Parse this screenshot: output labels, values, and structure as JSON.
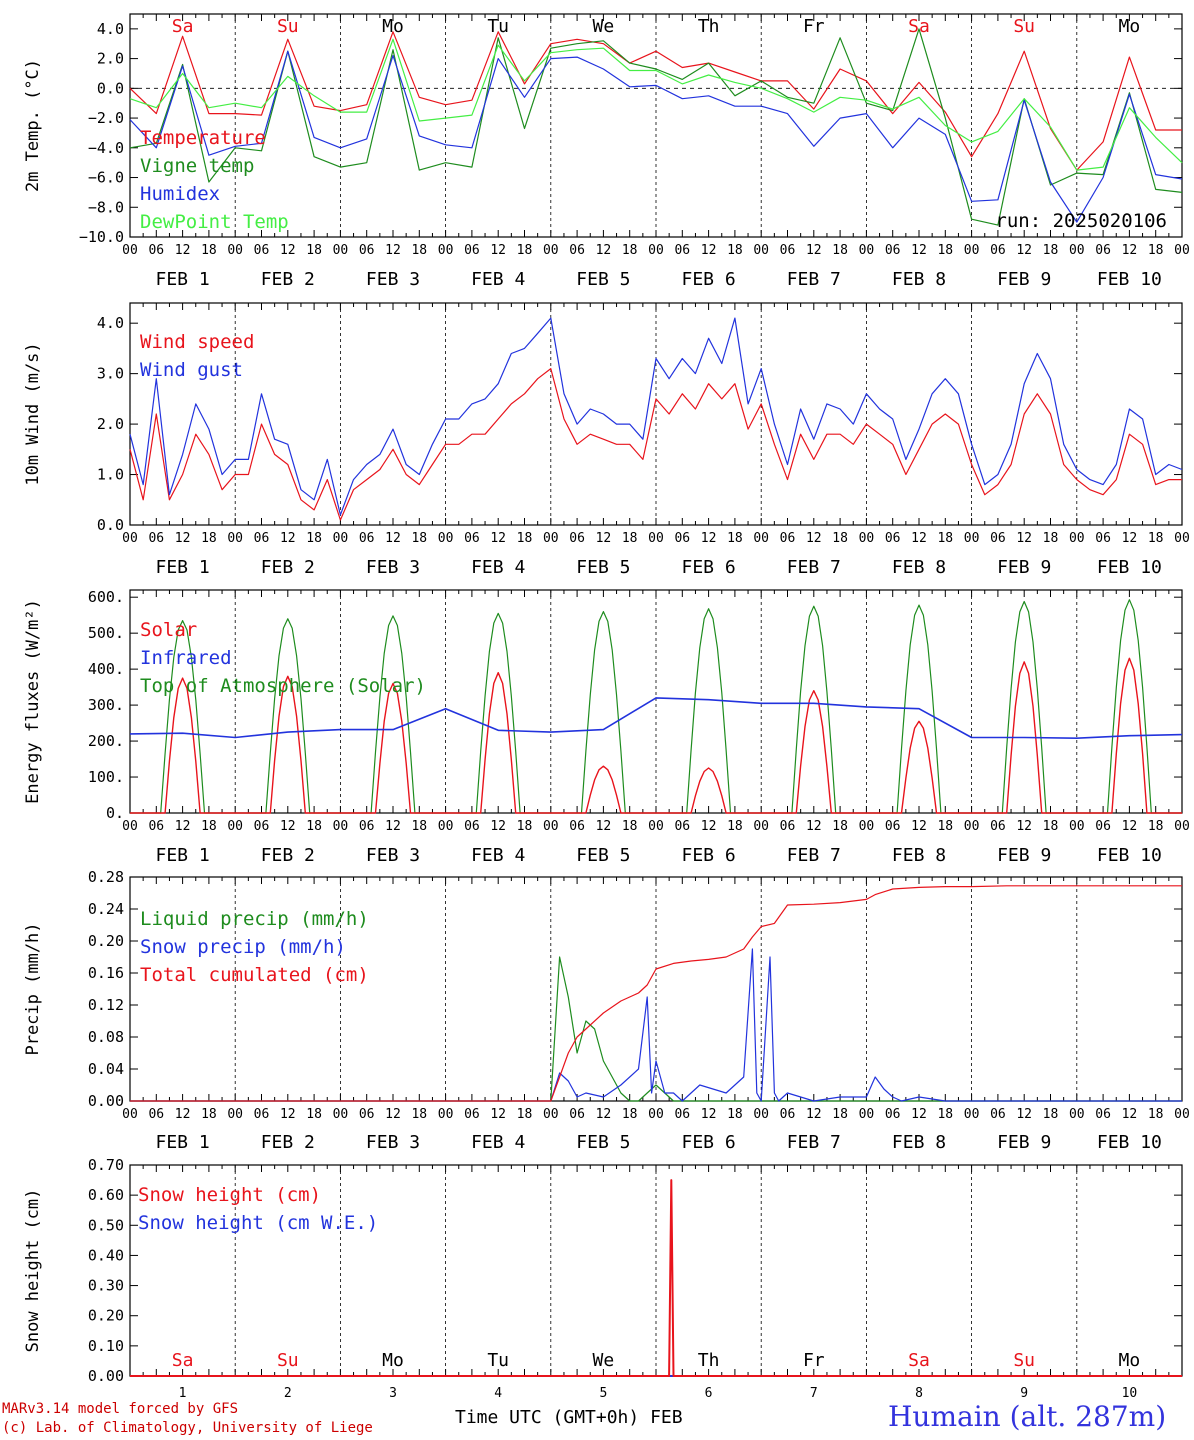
{
  "colors": {
    "red": "#e8141c",
    "green": "#1e8c1e",
    "blue": "#2233dd",
    "lightgreen": "#44ee44",
    "black": "#000000",
    "station": "#3333dd"
  },
  "days": [
    {
      "name": "Sa",
      "color": "#e8141c"
    },
    {
      "name": "Su",
      "color": "#e8141c"
    },
    {
      "name": "Mo",
      "color": "#000000"
    },
    {
      "name": "Tu",
      "color": "#000000"
    },
    {
      "name": "We",
      "color": "#000000"
    },
    {
      "name": "Th",
      "color": "#000000"
    },
    {
      "name": "Fr",
      "color": "#000000"
    },
    {
      "name": "Sa",
      "color": "#e8141c"
    },
    {
      "name": "Su",
      "color": "#e8141c"
    },
    {
      "name": "Mo",
      "color": "#000000"
    }
  ],
  "x_hour_ticks": [
    "00",
    "06",
    "12",
    "18"
  ],
  "x_final_tick": "00",
  "date_labels": [
    "FEB  1",
    "FEB  2",
    "FEB  3",
    "FEB  4",
    "FEB  5",
    "FEB  6",
    "FEB  7",
    "FEB  8",
    "FEB  9",
    "FEB 10"
  ],
  "bottom_day_numbers": [
    "1",
    "2",
    "3",
    "4",
    "5",
    "6",
    "7",
    "8",
    "9",
    "10"
  ],
  "run_label": "run: 2025020106",
  "footer": {
    "line1": "MARv3.14 model forced by GFS",
    "line2": "(c) Lab. of Climatology, University of Liege",
    "xlabel": "Time UTC (GMT+0h) FEB",
    "station": "Humain (alt. 287m)"
  },
  "chart_data": [
    {
      "type": "line",
      "ylabel": "2m Temp. (°C)",
      "ylim": [
        -10,
        5
      ],
      "yticks": [
        "4.0",
        "2.0",
        "0.0",
        "−2.0",
        "−4.0",
        "−6.0",
        "−8.0",
        "−10.0"
      ],
      "x_hours": [
        0,
        6,
        12,
        18,
        24,
        30,
        36,
        42,
        48,
        54,
        60,
        66,
        72,
        78,
        84,
        90,
        96,
        102,
        108,
        114,
        120,
        126,
        132,
        138,
        144,
        150,
        156,
        162,
        168,
        174,
        180,
        186,
        192,
        198,
        204,
        210,
        216,
        222,
        228,
        234,
        240
      ],
      "series": [
        {
          "name": "Temperature",
          "color": "#e8141c",
          "values": [
            0.0,
            -1.7,
            3.5,
            -1.7,
            -1.7,
            -1.8,
            3.3,
            -1.2,
            -1.5,
            -1.1,
            3.8,
            -0.6,
            -1.1,
            -0.8,
            3.8,
            0.3,
            3.0,
            3.3,
            3.0,
            1.7,
            2.5,
            1.4,
            1.7,
            1.1,
            0.5,
            0.5,
            -1.4,
            1.3,
            0.5,
            -1.7,
            0.4,
            -1.6,
            -4.6,
            -1.7,
            2.5,
            -2.7,
            -5.5,
            -3.6,
            2.1,
            -2.8,
            -2.8
          ]
        },
        {
          "name": "Vigne temp",
          "color": "#1e8c1e",
          "values": [
            -4.0,
            -3.7,
            1.6,
            -6.3,
            -4.0,
            -4.2,
            2.5,
            -4.6,
            -5.3,
            -5.0,
            2.6,
            -5.5,
            -5.0,
            -5.3,
            3.4,
            -2.7,
            2.7,
            3.0,
            3.2,
            1.7,
            1.3,
            0.6,
            1.7,
            -0.5,
            0.5,
            -0.6,
            -1.0,
            3.4,
            -1.0,
            -1.5,
            4.0,
            -2.0,
            -8.8,
            -9.2,
            -0.7,
            -6.5,
            -5.7,
            -5.8,
            -0.3,
            -6.8,
            -7.0
          ]
        },
        {
          "name": "Humidex",
          "color": "#2233dd",
          "values": [
            -2.1,
            -4.0,
            1.5,
            -4.5,
            -3.9,
            -3.7,
            2.5,
            -3.3,
            -4.0,
            -3.4,
            2.2,
            -3.2,
            -3.8,
            -4.0,
            2.0,
            -0.6,
            2.0,
            2.1,
            1.3,
            0.1,
            0.2,
            -0.7,
            -0.5,
            -1.2,
            -1.2,
            -1.7,
            -3.9,
            -2.0,
            -1.7,
            -4.0,
            -2.0,
            -3.1,
            -7.6,
            -7.5,
            -0.8,
            -6.3,
            -9.0,
            -6.0,
            -0.4,
            -5.8,
            -6.1
          ]
        },
        {
          "name": "DewPoint Temp",
          "color": "#44ee44",
          "values": [
            -0.7,
            -1.3,
            1.0,
            -1.3,
            -1.0,
            -1.3,
            0.8,
            -0.5,
            -1.6,
            -1.6,
            3.3,
            -2.2,
            -2.0,
            -1.8,
            2.9,
            0.5,
            2.4,
            2.6,
            2.7,
            1.2,
            1.2,
            0.3,
            0.9,
            0.4,
            0.0,
            -0.7,
            -1.6,
            -0.6,
            -0.8,
            -1.4,
            -0.6,
            -2.5,
            -3.6,
            -2.9,
            -0.7,
            -2.6,
            -5.5,
            -5.3,
            -1.3,
            -3.3,
            -5.0
          ]
        }
      ]
    },
    {
      "type": "line",
      "ylabel": "10m Wind (m/s)",
      "ylim": [
        0,
        4.4
      ],
      "yticks": [
        "4.0",
        "3.0",
        "2.0",
        "1.0",
        "0.0"
      ],
      "x_hours": [
        0,
        3,
        6,
        9,
        12,
        15,
        18,
        21,
        24,
        27,
        30,
        33,
        36,
        39,
        42,
        45,
        48,
        51,
        54,
        57,
        60,
        63,
        66,
        69,
        72,
        75,
        78,
        81,
        84,
        87,
        90,
        93,
        96,
        99,
        102,
        105,
        108,
        111,
        114,
        117,
        120,
        123,
        126,
        129,
        132,
        135,
        138,
        141,
        144,
        147,
        150,
        153,
        156,
        159,
        162,
        165,
        168,
        171,
        174,
        177,
        180,
        183,
        186,
        189,
        192,
        195,
        198,
        201,
        204,
        207,
        210,
        213,
        216,
        219,
        222,
        225,
        228,
        231,
        234,
        237,
        240
      ],
      "series": [
        {
          "name": "Wind speed",
          "color": "#e8141c",
          "values": [
            1.5,
            0.5,
            2.2,
            0.5,
            1.0,
            1.8,
            1.4,
            0.7,
            1.0,
            1.0,
            2.0,
            1.4,
            1.2,
            0.5,
            0.3,
            0.9,
            0.1,
            0.7,
            0.9,
            1.1,
            1.5,
            1.0,
            0.8,
            1.2,
            1.6,
            1.6,
            1.8,
            1.8,
            2.1,
            2.4,
            2.6,
            2.9,
            3.1,
            2.1,
            1.6,
            1.8,
            1.7,
            1.6,
            1.6,
            1.3,
            2.5,
            2.2,
            2.6,
            2.3,
            2.8,
            2.5,
            2.8,
            1.9,
            2.4,
            1.6,
            0.9,
            1.8,
            1.3,
            1.8,
            1.8,
            1.6,
            2.0,
            1.8,
            1.6,
            1.0,
            1.5,
            2.0,
            2.2,
            2.0,
            1.2,
            0.6,
            0.8,
            1.2,
            2.2,
            2.6,
            2.2,
            1.2,
            0.9,
            0.7,
            0.6,
            0.9,
            1.8,
            1.6,
            0.8,
            0.9,
            0.9
          ]
        },
        {
          "name": "Wind gust",
          "color": "#2233dd",
          "values": [
            1.8,
            0.8,
            2.9,
            0.6,
            1.4,
            2.4,
            1.9,
            1.0,
            1.3,
            1.3,
            2.6,
            1.7,
            1.6,
            0.7,
            0.5,
            1.3,
            0.2,
            0.9,
            1.2,
            1.4,
            1.9,
            1.2,
            1.0,
            1.6,
            2.1,
            2.1,
            2.4,
            2.5,
            2.8,
            3.4,
            3.5,
            3.8,
            4.1,
            2.6,
            2.0,
            2.3,
            2.2,
            2.0,
            2.0,
            1.7,
            3.3,
            2.9,
            3.3,
            3.0,
            3.7,
            3.2,
            4.1,
            2.4,
            3.1,
            2.0,
            1.2,
            2.3,
            1.7,
            2.4,
            2.3,
            2.0,
            2.6,
            2.3,
            2.1,
            1.3,
            1.9,
            2.6,
            2.9,
            2.6,
            1.6,
            0.8,
            1.0,
            1.6,
            2.8,
            3.4,
            2.9,
            1.6,
            1.1,
            0.9,
            0.8,
            1.2,
            2.3,
            2.1,
            1.0,
            1.2,
            1.1
          ]
        }
      ]
    },
    {
      "type": "line",
      "ylabel": "Energy fluxes (W/m²)",
      "ylim": [
        0,
        620
      ],
      "yticks": [
        "600.",
        "500.",
        "400.",
        "300.",
        "200.",
        "100.",
        "0."
      ],
      "series": [
        {
          "name": "Solar",
          "color": "#e8141c",
          "daily_peak": [
            375,
            380,
            360,
            390,
            130,
            125,
            340,
            255,
            420,
            430
          ]
        },
        {
          "name": "Infrared",
          "color": "#2233dd",
          "x_hours": [
            0,
            12,
            24,
            36,
            48,
            60,
            72,
            84,
            96,
            108,
            120,
            132,
            144,
            156,
            168,
            180,
            192,
            204,
            216,
            228,
            240
          ],
          "values": [
            220,
            222,
            210,
            225,
            232,
            232,
            290,
            230,
            225,
            232,
            320,
            315,
            305,
            305,
            295,
            290,
            210,
            210,
            208,
            215,
            218
          ]
        },
        {
          "name": "Top of Atmosphere (Solar)",
          "color": "#1e8c1e",
          "daily_peak": [
            535,
            540,
            548,
            555,
            560,
            568,
            575,
            578,
            588,
            593
          ]
        }
      ]
    },
    {
      "type": "line",
      "ylabel": "Precip (mm/h)",
      "ylim": [
        0,
        0.28
      ],
      "yticks": [
        "0.28",
        "0.24",
        "0.20",
        "0.16",
        "0.12",
        "0.08",
        "0.04",
        "0.00"
      ],
      "series": [
        {
          "name": "Liquid precip (mm/h)",
          "color": "#1e8c1e",
          "x_hours": [
            0,
            96,
            98,
            100,
            102,
            104,
            106,
            108,
            110,
            112,
            114,
            116,
            118,
            120,
            124,
            130,
            140,
            150,
            160,
            240
          ],
          "values": [
            0,
            0,
            0.18,
            0.13,
            0.06,
            0.1,
            0.09,
            0.05,
            0.03,
            0.01,
            0,
            0,
            0.01,
            0.02,
            0,
            0,
            0,
            0,
            0,
            0
          ]
        },
        {
          "name": "Snow precip (mm/h)",
          "color": "#2233dd",
          "x_hours": [
            0,
            96,
            98,
            100,
            102,
            104,
            108,
            112,
            116,
            118,
            119,
            120,
            122,
            124,
            126,
            130,
            136,
            140,
            142,
            143,
            144,
            146,
            147,
            148,
            150,
            156,
            162,
            168,
            170,
            172,
            174,
            176,
            180,
            186,
            192,
            240
          ],
          "values": [
            0,
            0,
            0.035,
            0.025,
            0.005,
            0.01,
            0.005,
            0.02,
            0.04,
            0.13,
            0.01,
            0.05,
            0.01,
            0.01,
            0.0,
            0.02,
            0.01,
            0.03,
            0.19,
            0.01,
            0.0,
            0.18,
            0.01,
            0.0,
            0.01,
            0.0,
            0.005,
            0.005,
            0.03,
            0.015,
            0.005,
            0.0,
            0.005,
            0.0,
            0.0,
            0.0
          ]
        },
        {
          "name": "Total cumulated (cm)",
          "color": "#e8141c",
          "x_hours": [
            0,
            96,
            98,
            100,
            102,
            104,
            108,
            112,
            116,
            118,
            120,
            124,
            128,
            132,
            136,
            140,
            142,
            144,
            147,
            150,
            156,
            162,
            168,
            170,
            174,
            180,
            186,
            192,
            200,
            240
          ],
          "values": [
            0,
            0,
            0.03,
            0.06,
            0.08,
            0.09,
            0.11,
            0.125,
            0.135,
            0.145,
            0.165,
            0.172,
            0.175,
            0.177,
            0.18,
            0.19,
            0.205,
            0.218,
            0.222,
            0.245,
            0.246,
            0.248,
            0.252,
            0.258,
            0.265,
            0.267,
            0.268,
            0.268,
            0.269,
            0.269
          ]
        }
      ]
    },
    {
      "type": "line",
      "ylabel": "Snow height (cm)",
      "ylim": [
        0,
        0.7
      ],
      "yticks": [
        "0.70",
        "0.60",
        "0.50",
        "0.40",
        "0.30",
        "0.20",
        "0.10",
        "0.00"
      ],
      "series": [
        {
          "name": "Snow height (cm)",
          "color": "#e8141c",
          "x_hours": [
            0,
            123,
            123.5,
            124,
            240
          ],
          "values": [
            0,
            0,
            0.65,
            0,
            0
          ]
        },
        {
          "name": "Snow height (cm W.E.)",
          "color": "#2233dd",
          "x_hours": [
            0,
            240
          ],
          "values": [
            0,
            0
          ]
        }
      ]
    }
  ]
}
